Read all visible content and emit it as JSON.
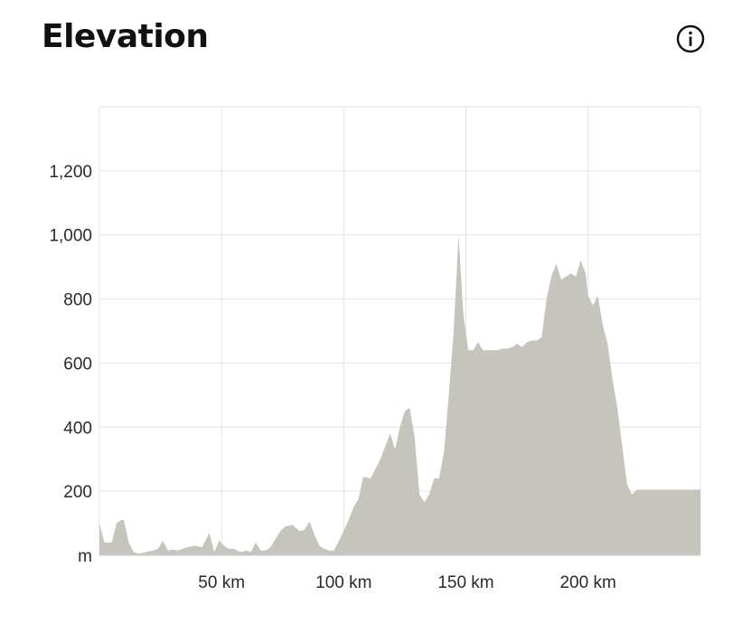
{
  "header": {
    "title": "Elevation",
    "info_icon": "info-circle-icon"
  },
  "colors": {
    "area_fill": "#c5c4bd",
    "grid": "#e3e3e3",
    "axis": "#cfcfcf",
    "text": "#2a2a2a"
  },
  "chart_data": {
    "type": "area",
    "title": "Elevation",
    "xlabel": "",
    "ylabel": "m",
    "xlim": [
      0,
      246
    ],
    "ylim": [
      0,
      1400
    ],
    "x_ticks": [
      50,
      100,
      150,
      200
    ],
    "x_tick_labels": [
      "50 km",
      "100 km",
      "150 km",
      "200 km"
    ],
    "y_ticks": [
      200,
      400,
      600,
      800,
      1000,
      1200
    ],
    "y_tick_labels": [
      "200",
      "400",
      "600",
      "800",
      "1,000",
      "1,200"
    ],
    "y_unit_label": "m",
    "grid": true,
    "x": [
      0,
      2,
      5,
      7,
      9,
      10,
      12,
      14,
      16,
      19,
      22,
      24,
      26,
      28,
      30,
      32,
      34,
      36,
      39,
      42,
      45,
      47,
      49,
      51,
      53,
      55,
      58,
      60,
      62,
      64,
      66,
      68,
      70,
      72,
      74,
      76,
      79,
      82,
      84,
      86,
      88,
      90,
      92,
      94,
      96,
      99,
      102,
      104,
      106,
      108,
      111,
      113,
      115,
      117,
      119,
      121,
      123,
      125,
      127,
      129,
      131,
      133,
      135,
      137,
      139,
      141,
      143,
      145,
      147,
      149,
      151,
      153,
      155,
      157,
      159,
      161,
      163,
      165,
      167,
      169,
      171,
      173,
      175,
      177,
      179,
      181,
      183,
      185,
      187,
      189,
      191,
      193,
      195,
      197,
      199,
      200,
      202,
      204,
      206,
      208,
      210,
      212,
      214,
      216,
      218,
      220,
      222,
      224,
      226,
      228,
      230,
      232,
      234,
      236,
      238,
      240,
      242,
      244,
      246
    ],
    "y": [
      100,
      40,
      40,
      100,
      110,
      110,
      40,
      10,
      5,
      10,
      15,
      20,
      45,
      15,
      18,
      15,
      20,
      25,
      30,
      25,
      70,
      10,
      45,
      30,
      20,
      20,
      10,
      15,
      10,
      40,
      15,
      15,
      25,
      50,
      75,
      90,
      95,
      75,
      80,
      105,
      65,
      30,
      20,
      15,
      15,
      60,
      110,
      150,
      175,
      245,
      240,
      270,
      300,
      340,
      380,
      330,
      400,
      450,
      460,
      370,
      190,
      165,
      190,
      240,
      240,
      320,
      500,
      700,
      1000,
      750,
      640,
      640,
      665,
      640,
      640,
      640,
      640,
      645,
      645,
      650,
      660,
      650,
      665,
      670,
      670,
      680,
      800,
      870,
      910,
      860,
      870,
      880,
      870,
      920,
      880,
      810,
      780,
      810,
      720,
      660,
      550,
      460,
      340,
      220,
      190,
      205,
      205,
      205,
      205,
      205,
      205,
      205,
      205,
      205,
      205,
      205,
      205,
      205,
      205
    ]
  }
}
